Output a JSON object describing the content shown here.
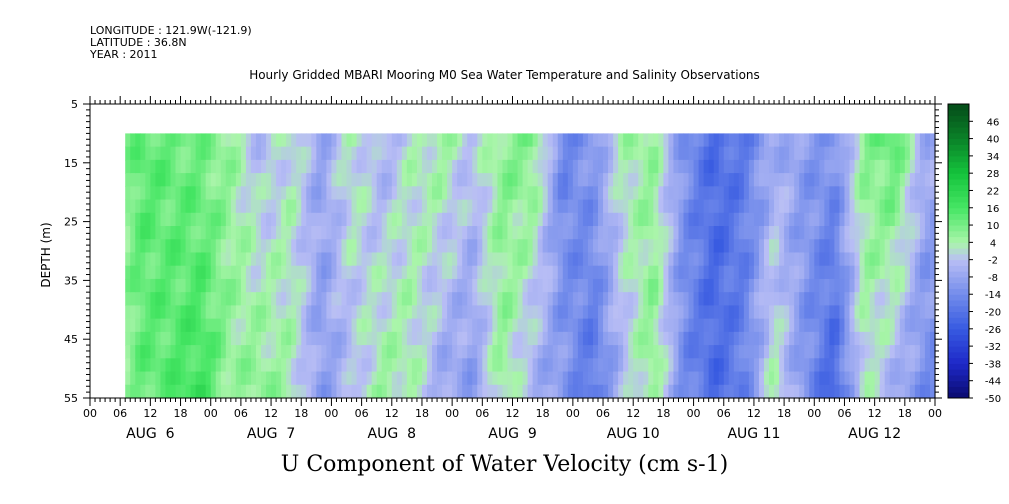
{
  "header": {
    "longitude": "LONGITUDE : 121.9W(-121.9)",
    "latitude": "LATITUDE : 36.8N",
    "year": "YEAR : 2011"
  },
  "chart_data": {
    "type": "heatmap",
    "title": "Hourly Gridded MBARI Mooring M0 Sea Water Temperature and Salinity Observations",
    "bottom_title": "U Component of Water Velocity (cm s-1)",
    "ylabel": "DEPTH (m)",
    "y_axis": {
      "range": [
        5,
        55
      ],
      "inverted": true,
      "ticks": [
        5,
        15,
        25,
        35,
        45,
        55
      ]
    },
    "x_axis": {
      "hour_ticks": [
        "00",
        "06",
        "12",
        "18",
        "00",
        "06",
        "12",
        "18",
        "00",
        "06",
        "12",
        "18",
        "00",
        "06",
        "12",
        "18",
        "00",
        "06",
        "12",
        "18",
        "00",
        "06",
        "12",
        "18",
        "00",
        "06",
        "12",
        "18",
        "00"
      ],
      "day_labels": [
        "AUG  6",
        "AUG  7",
        "AUG  8",
        "AUG  9",
        "AUG 10",
        "AUG 11",
        "AUG 12"
      ],
      "range_hours": [
        0,
        168
      ]
    },
    "data_start_hour": 7,
    "data_depth_range": [
      10,
      55
    ],
    "colorbar": {
      "labels": [
        "46",
        "40",
        "34",
        "28",
        "22",
        "16",
        "10",
        "4",
        "-2",
        "-8",
        "-14",
        "-20",
        "-26",
        "-32",
        "-38",
        "-44",
        "-50"
      ],
      "range": [
        -50,
        52
      ]
    },
    "u_velocity_by_hour": {
      "hours": [
        7,
        10,
        16,
        22,
        28,
        34,
        40,
        46,
        52,
        58,
        64,
        70,
        76,
        82,
        88,
        94,
        100,
        106,
        112,
        118,
        124,
        130,
        136,
        142,
        148,
        154,
        160,
        166
      ],
      "shallow_10m": [
        8,
        14,
        12,
        10,
        6,
        -4,
        2,
        -8,
        4,
        -6,
        2,
        6,
        -2,
        8,
        10,
        -16,
        -10,
        4,
        6,
        -12,
        -22,
        -18,
        -6,
        -10,
        -12,
        8,
        14,
        -6
      ],
      "deep_50m": [
        6,
        12,
        14,
        18,
        6,
        8,
        4,
        -10,
        -4,
        6,
        4,
        -8,
        -10,
        6,
        -6,
        -10,
        -20,
        -4,
        8,
        -14,
        -22,
        -16,
        4,
        -12,
        -24,
        2,
        -6,
        -14
      ]
    }
  }
}
